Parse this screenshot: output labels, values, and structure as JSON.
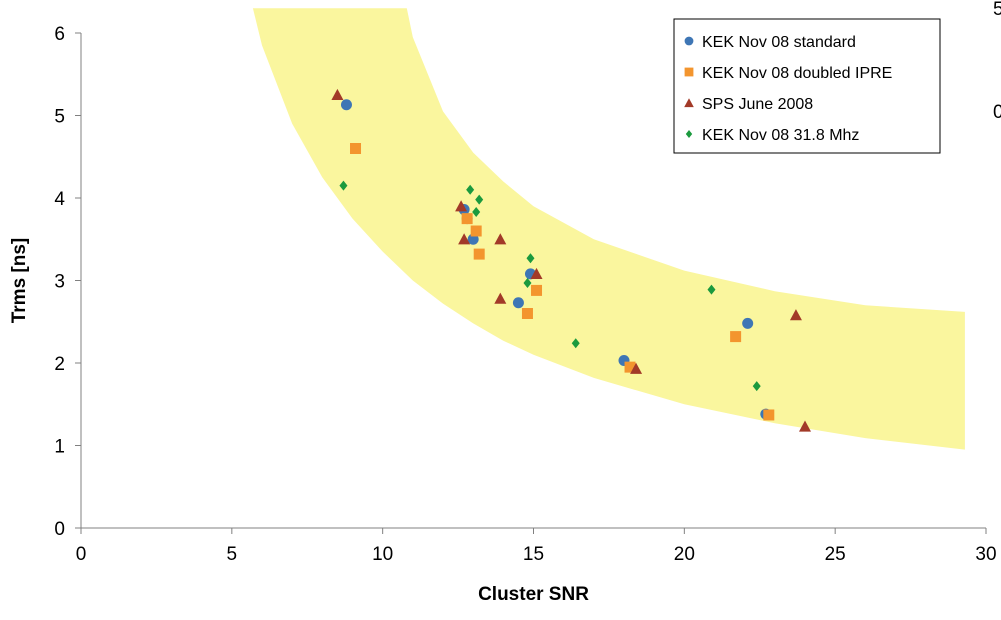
{
  "chart_data": {
    "type": "scatter",
    "xlabel": "Cluster SNR",
    "ylabel": "Trms [ns]",
    "xlim": [
      0,
      30
    ],
    "ylim": [
      0,
      6
    ],
    "xticks": [
      "0",
      "5",
      "10",
      "15",
      "20",
      "25",
      "30"
    ],
    "yticks": [
      "0",
      "1",
      "2",
      "3",
      "4",
      "5",
      "6"
    ],
    "grid": false,
    "legend_position": "top-right",
    "band_color": "#FAF69E",
    "band": {
      "upper": [
        [
          5.7,
          6.3
        ],
        [
          7,
          6.3
        ],
        [
          8,
          6.3
        ],
        [
          9,
          6.3
        ],
        [
          10,
          6.3
        ],
        [
          10.8,
          6.3
        ],
        [
          11,
          5.95
        ],
        [
          12,
          5.05
        ],
        [
          13,
          4.55
        ],
        [
          14,
          4.2
        ],
        [
          15,
          3.9
        ],
        [
          17,
          3.5
        ],
        [
          20,
          3.12
        ],
        [
          23,
          2.87
        ],
        [
          26,
          2.7
        ],
        [
          29.3,
          2.62
        ]
      ],
      "lower": [
        [
          5.7,
          6.3
        ],
        [
          6,
          5.85
        ],
        [
          7,
          4.9
        ],
        [
          8,
          4.25
        ],
        [
          9,
          3.75
        ],
        [
          10,
          3.35
        ],
        [
          11,
          3.0
        ],
        [
          12,
          2.72
        ],
        [
          13,
          2.48
        ],
        [
          14,
          2.27
        ],
        [
          15,
          2.1
        ],
        [
          17,
          1.82
        ],
        [
          20,
          1.5
        ],
        [
          23,
          1.27
        ],
        [
          26,
          1.09
        ],
        [
          29.3,
          0.95
        ]
      ]
    },
    "series": [
      {
        "name": "KEK Nov 08 standard",
        "marker": "circle",
        "color": "#3E76B5",
        "points": [
          [
            8.8,
            5.13
          ],
          [
            12.7,
            3.86
          ],
          [
            12.8,
            3.75
          ],
          [
            13.0,
            3.5
          ],
          [
            14.5,
            2.73
          ],
          [
            14.9,
            3.08
          ],
          [
            18.0,
            2.03
          ],
          [
            22.1,
            2.48
          ],
          [
            22.7,
            1.38
          ]
        ]
      },
      {
        "name": "KEK Nov 08 doubled IPRE",
        "marker": "square",
        "color": "#F3952E",
        "points": [
          [
            9.1,
            4.6
          ],
          [
            12.8,
            3.75
          ],
          [
            13.1,
            3.6
          ],
          [
            13.2,
            3.32
          ],
          [
            14.8,
            2.6
          ],
          [
            15.1,
            2.88
          ],
          [
            18.2,
            1.95
          ],
          [
            21.7,
            2.32
          ],
          [
            22.8,
            1.37
          ]
        ]
      },
      {
        "name": "SPS June 2008",
        "marker": "triangle",
        "color": "#A23A28",
        "points": [
          [
            8.5,
            5.25
          ],
          [
            12.6,
            3.9
          ],
          [
            12.7,
            3.5
          ],
          [
            13.9,
            3.5
          ],
          [
            13.9,
            2.78
          ],
          [
            15.1,
            3.08
          ],
          [
            18.4,
            1.93
          ],
          [
            23.7,
            2.58
          ],
          [
            24.0,
            1.23
          ]
        ]
      },
      {
        "name": "KEK Nov 08 31.8 Mhz",
        "marker": "diamond",
        "color": "#1B9A3E",
        "points": [
          [
            8.7,
            4.15
          ],
          [
            12.9,
            4.1
          ],
          [
            13.2,
            3.98
          ],
          [
            13.1,
            3.83
          ],
          [
            14.9,
            3.27
          ],
          [
            14.8,
            2.97
          ],
          [
            16.4,
            2.24
          ],
          [
            20.9,
            2.89
          ],
          [
            22.4,
            1.72
          ]
        ]
      }
    ],
    "clipped_right_text": [
      "5",
      "0"
    ]
  }
}
